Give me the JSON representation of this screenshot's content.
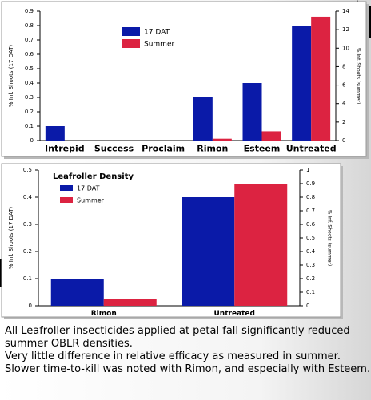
{
  "chart_data": [
    {
      "type": "bar",
      "categories": [
        "Intrepid",
        "Success",
        "Proclaim",
        "Rimon",
        "Esteem",
        "Untreated"
      ],
      "ylabel": "% Inf. Shoots (17 DAT)",
      "y2label": "% Inf. Shoots (summer)",
      "ylim": [
        0,
        0.9
      ],
      "yticks": [
        0,
        0.1,
        0.2,
        0.3,
        0.4,
        0.5,
        0.6,
        0.7,
        0.8,
        0.9
      ],
      "y2lim": [
        0,
        14
      ],
      "y2ticks": [
        0,
        2,
        4,
        6,
        8,
        10,
        12,
        14
      ],
      "series": [
        {
          "name": "17 DAT",
          "color": "#0a1aa8",
          "values": [
            0.1,
            0,
            0,
            0.3,
            0.4,
            0.8
          ]
        },
        {
          "name": "Summer",
          "color": "#dc2341",
          "axis": "y2",
          "values": [
            0,
            0,
            0,
            0.2,
            1.0,
            13.4
          ]
        }
      ]
    },
    {
      "type": "bar",
      "title": "Leafroller Density",
      "categories": [
        "Rimon",
        "Untreated"
      ],
      "ylabel": "% Inf. Shoots (17 DAT)",
      "y2label": "% Inf. Shoots (summer)",
      "ylim": [
        0,
        0.5
      ],
      "yticks": [
        0,
        0.1,
        0.2,
        0.3,
        0.4,
        0.5
      ],
      "y2lim": [
        0,
        1
      ],
      "y2ticks": [
        0,
        0.1,
        0.2,
        0.3,
        0.4,
        0.5,
        0.6,
        0.7,
        0.8,
        0.9,
        1
      ],
      "series": [
        {
          "name": "17 DAT",
          "color": "#0a1aa8",
          "values": [
            0.1,
            0.4
          ]
        },
        {
          "name": "Summer",
          "color": "#dc2341",
          "axis": "y2",
          "values": [
            0.05,
            0.9
          ]
        }
      ]
    }
  ],
  "notes": [
    "All Leafroller insecticides applied at petal fall significantly reduced summer OBLR densities.",
    "Very little difference in relative efficacy as measured in summer.",
    "Slower time-to-kill was noted with Rimon, and especially with Esteem."
  ]
}
